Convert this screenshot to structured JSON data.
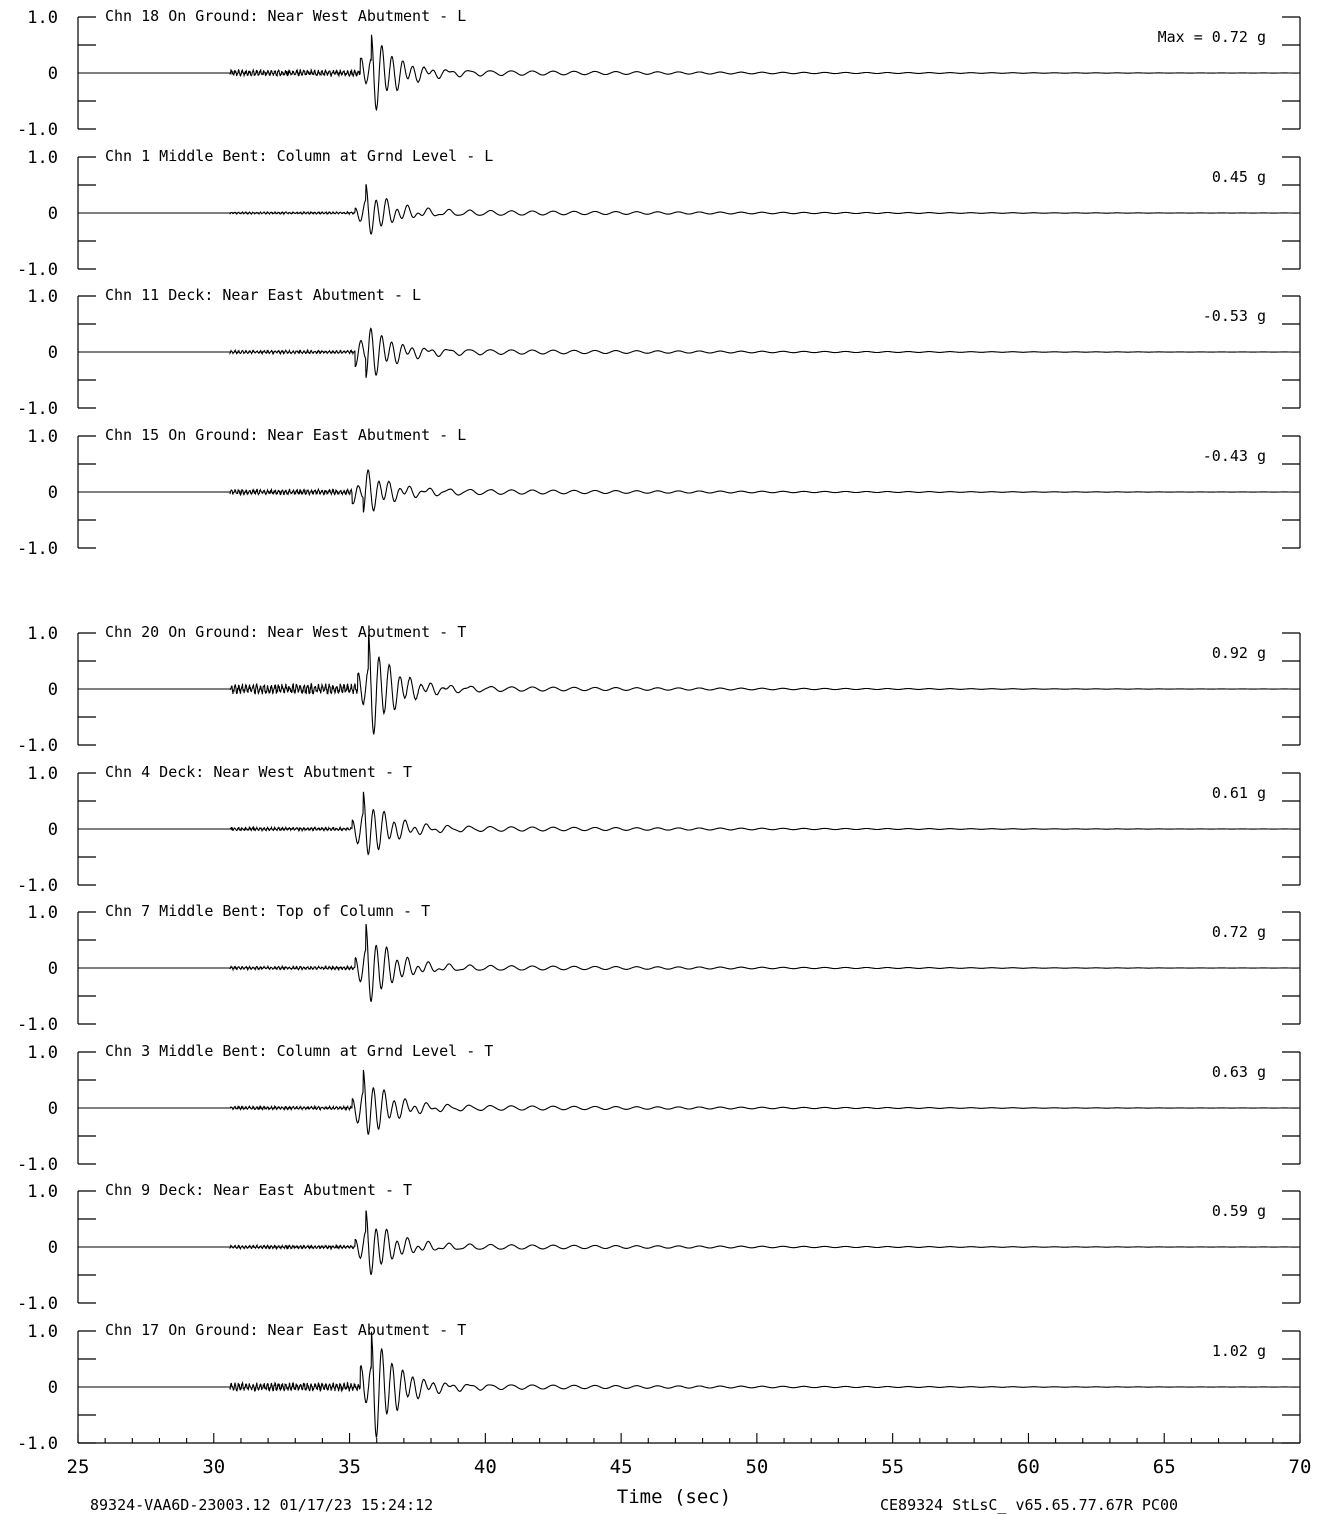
{
  "chart_data": {
    "type": "line",
    "xlim": [
      25,
      70
    ],
    "ylim": [
      -1.0,
      1.0
    ],
    "xlabel": "Time (sec)",
    "x_ticks": [
      25,
      30,
      35,
      40,
      45,
      50,
      55,
      60,
      65,
      70
    ],
    "y_tick_labels": [
      "1.0",
      "0",
      "-1.0"
    ],
    "max_prefix": "Max =",
    "unit": "g",
    "channels": [
      {
        "label": "Chn 18  On Ground: Near West Abutment - L",
        "peak_time": 35.9,
        "max": 0.72,
        "max_text": "0.72",
        "pre_noise": 0.06
      },
      {
        "label": "Chn 1  Middle Bent: Column at Grnd Level - L",
        "peak_time": 35.7,
        "max": 0.45,
        "max_text": "0.45",
        "pre_noise": 0.02
      },
      {
        "label": "Chn 11  Deck: Near East Abutment - L",
        "peak_time": 35.7,
        "max": -0.53,
        "max_text": "-0.53",
        "pre_noise": 0.03
      },
      {
        "label": "Chn 15  On Ground: Near East Abutment - L",
        "peak_time": 35.6,
        "max": -0.43,
        "max_text": "-0.43",
        "pre_noise": 0.05
      },
      {
        "label": "Chn 20  On Ground: Near West Abutment - T",
        "peak_time": 35.8,
        "max": 0.92,
        "max_text": "0.92",
        "pre_noise": 0.1
      },
      {
        "label": "Chn 4  Deck: Near West Abutment - T",
        "peak_time": 35.6,
        "max": 0.61,
        "max_text": "0.61",
        "pre_noise": 0.03
      },
      {
        "label": "Chn 7  Middle Bent: Top of Column - T",
        "peak_time": 35.7,
        "max": 0.72,
        "max_text": "0.72",
        "pre_noise": 0.03
      },
      {
        "label": "Chn 3  Middle Bent: Column at Grnd Level - T",
        "peak_time": 35.6,
        "max": 0.63,
        "max_text": "0.63",
        "pre_noise": 0.03
      },
      {
        "label": "Chn 9  Deck: Near East Abutment - T",
        "peak_time": 35.7,
        "max": 0.59,
        "max_text": "0.59",
        "pre_noise": 0.03
      },
      {
        "label": "Chn 17  On Ground: Near East Abutment - T",
        "peak_time": 35.9,
        "max": 1.02,
        "max_text": "1.02",
        "pre_noise": 0.08
      }
    ]
  },
  "footer": {
    "left": "89324-VAA6D-23003.12 01/17/23 15:24:12",
    "right": "CE89324  StLsC_  v65.65.77.67R PC00"
  }
}
